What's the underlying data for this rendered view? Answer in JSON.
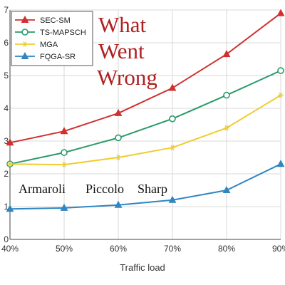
{
  "chart_data": {
    "type": "line",
    "xlabel": "Traffic load",
    "ylabel": "",
    "categories": [
      "40%",
      "50%",
      "60%",
      "70%",
      "80%",
      "90%"
    ],
    "ylim": [
      0,
      7
    ],
    "yticks": [
      "0",
      "1",
      "2",
      "3",
      "4",
      "5",
      "6",
      "7"
    ],
    "grid": true,
    "legend_position": "top-left",
    "series": [
      {
        "name": "SEC-SM",
        "color": "#d03030",
        "marker": "triangle-up",
        "values": [
          2.95,
          3.3,
          3.85,
          4.62,
          5.65,
          6.9
        ]
      },
      {
        "name": "TS-MAPSCH",
        "color": "#2a9a6a",
        "marker": "circle",
        "values": [
          2.3,
          2.65,
          3.1,
          3.68,
          4.4,
          5.15
        ]
      },
      {
        "name": "MGA",
        "color": "#f0cc30",
        "marker": "star",
        "values": [
          2.3,
          2.28,
          2.5,
          2.8,
          3.4,
          4.4
        ]
      },
      {
        "name": "FQGA-SR",
        "color": "#2f86c0",
        "marker": "triangle-up",
        "values": [
          0.93,
          0.96,
          1.05,
          1.2,
          1.5,
          2.3
        ]
      }
    ],
    "annotations": {
      "red_lines": [
        "What",
        "Went",
        "Wrong"
      ],
      "red_color": "#b02020",
      "names": [
        "Armaroli",
        "Piccolo",
        "Sharp"
      ]
    }
  }
}
